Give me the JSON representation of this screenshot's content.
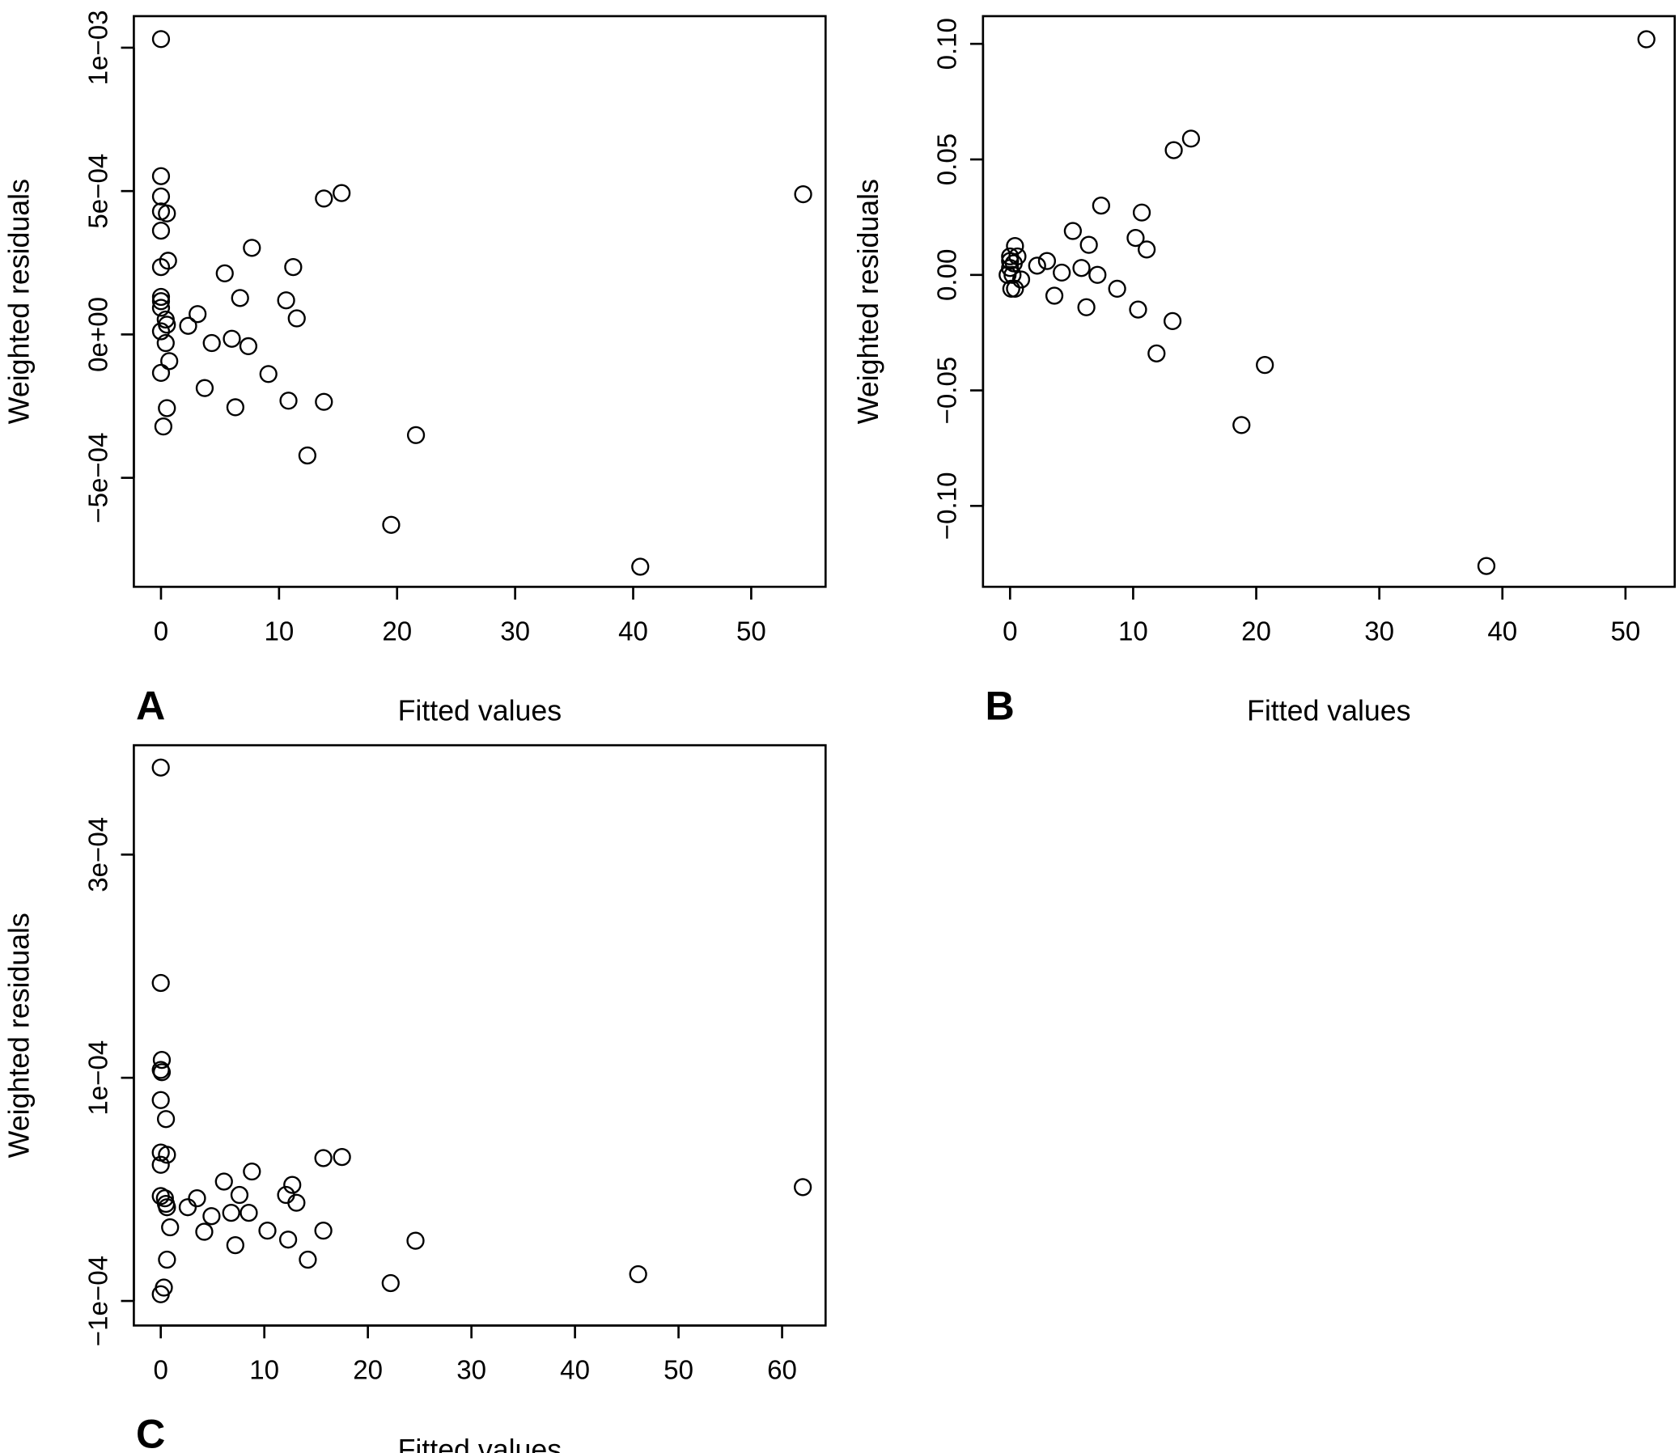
{
  "chart_data": [
    {
      "type": "scatter",
      "panel_label": "A",
      "xlabel": "Fitted values",
      "ylabel": "Weighted residuals",
      "xticks": [
        0,
        10,
        20,
        30,
        40,
        50
      ],
      "xtick_labels": [
        "0",
        "10",
        "20",
        "30",
        "40",
        "50"
      ],
      "yticks": [
        -0.0005,
        0,
        0.0005,
        0.001
      ],
      "ytick_labels": [
        "−5e−04",
        "0e+00",
        "5e−04",
        "1e−03"
      ],
      "xlim": [
        -2.3,
        56.3
      ],
      "ylim": [
        -0.00088,
        0.00111
      ],
      "marker": "open-circle",
      "points": [
        [
          0,
          0.00103
        ],
        [
          0,
          0.000552
        ],
        [
          0,
          0.000481
        ],
        [
          0,
          0.000429
        ],
        [
          0.5,
          0.000422
        ],
        [
          0,
          0.000362
        ],
        [
          0,
          0.000235
        ],
        [
          0.6,
          0.000257
        ],
        [
          0,
          0.000131
        ],
        [
          0,
          0.000116
        ],
        [
          0,
          9.3e-05
        ],
        [
          0.4,
          5.2e-05
        ],
        [
          0.5,
          3.4e-05
        ],
        [
          0,
          1.1e-05
        ],
        [
          0.4,
          -3e-05
        ],
        [
          0.7,
          -9.3e-05
        ],
        [
          0,
          -0.000134
        ],
        [
          0.5,
          -0.000257
        ],
        [
          0.2,
          -0.000321
        ],
        [
          3.1,
          7.1e-05
        ],
        [
          2.3,
          3e-05
        ],
        [
          4.3,
          -3e-05
        ],
        [
          3.7,
          -0.000187
        ],
        [
          5.4,
          0.000213
        ],
        [
          6.0,
          -1.5e-05
        ],
        [
          6.7,
          0.000127
        ],
        [
          7.4,
          -4.1e-05
        ],
        [
          7.7,
          0.000302
        ],
        [
          6.3,
          -0.000254
        ],
        [
          9.1,
          -0.000138
        ],
        [
          10.6,
          0.000119
        ],
        [
          11.2,
          0.000235
        ],
        [
          11.5,
          5.6e-05
        ],
        [
          10.8,
          -0.000231
        ],
        [
          13.8,
          0.000474
        ],
        [
          15.3,
          0.000493
        ],
        [
          13.8,
          -0.000235
        ],
        [
          12.4,
          -0.000422
        ],
        [
          21.6,
          -0.000351
        ],
        [
          19.5,
          -0.000664
        ],
        [
          40.6,
          -0.00081
        ],
        [
          54.4,
          0.000489
        ]
      ]
    },
    {
      "type": "scatter",
      "panel_label": "B",
      "xlabel": "Fitted values",
      "ylabel": "Weighted residuals",
      "xticks": [
        0,
        10,
        20,
        30,
        40,
        50
      ],
      "xtick_labels": [
        "0",
        "10",
        "20",
        "30",
        "40",
        "50"
      ],
      "yticks": [
        -0.1,
        -0.05,
        0,
        0.05,
        0.1
      ],
      "ytick_labels": [
        "−0.10",
        "−0.05",
        "0.00",
        "0.05",
        "0.10"
      ],
      "xlim": [
        -2.2,
        54
      ],
      "ylim": [
        -0.135,
        0.112
      ],
      "marker": "open-circle",
      "points": [
        [
          51.7,
          0.102
        ],
        [
          14.7,
          0.059
        ],
        [
          13.3,
          0.054
        ],
        [
          7.4,
          0.03
        ],
        [
          10.7,
          0.027
        ],
        [
          5.1,
          0.019
        ],
        [
          10.2,
          0.016
        ],
        [
          11.1,
          0.011
        ],
        [
          6.4,
          0.013
        ],
        [
          3.0,
          0.006
        ],
        [
          2.2,
          0.004
        ],
        [
          4.2,
          0.001
        ],
        [
          5.8,
          0.003
        ],
        [
          7.1,
          0
        ],
        [
          8.7,
          -0.006
        ],
        [
          3.6,
          -0.009
        ],
        [
          6.2,
          -0.014
        ],
        [
          10.4,
          -0.015
        ],
        [
          13.2,
          -0.02
        ],
        [
          11.9,
          -0.034
        ],
        [
          20.7,
          -0.039
        ],
        [
          18.8,
          -0.065
        ],
        [
          38.7,
          -0.126
        ],
        [
          0.4,
          0.0125
        ],
        [
          0,
          0.008
        ],
        [
          0,
          0.006
        ],
        [
          0,
          0.003
        ],
        [
          0.2,
          0
        ],
        [
          0.6,
          0.008
        ],
        [
          0.9,
          -0.002
        ],
        [
          0.1,
          -0.006
        ],
        [
          0.4,
          -0.006
        ],
        [
          -0.2,
          0
        ],
        [
          0.3,
          0.005
        ]
      ]
    },
    {
      "type": "scatter",
      "panel_label": "C",
      "xlabel": "Fitted values",
      "ylabel": "Weighted residuals",
      "xticks": [
        0,
        10,
        20,
        30,
        40,
        50,
        60
      ],
      "xtick_labels": [
        "0",
        "10",
        "20",
        "30",
        "40",
        "50",
        "60"
      ],
      "yticks": [
        -0.0001,
        0.0001,
        0.0003
      ],
      "ytick_labels": [
        "−1e−04",
        "1e−04",
        "3e−04"
      ],
      "xlim": [
        -2.6,
        64.2
      ],
      "ylim": [
        -0.000122,
        0.000398
      ],
      "marker": "open-circle",
      "points": [
        [
          0,
          0.000378
        ],
        [
          0,
          0.000185
        ],
        [
          0.1,
          0.000116
        ],
        [
          0,
          0.000107
        ],
        [
          0.1,
          0.000105
        ],
        [
          0,
          8e-05
        ],
        [
          0.5,
          6.3e-05
        ],
        [
          0,
          3.3e-05
        ],
        [
          0.6,
          3.1e-05
        ],
        [
          0,
          2.2e-05
        ],
        [
          0,
          -6e-06
        ],
        [
          0.4,
          -8e-06
        ],
        [
          0.5,
          -1.3e-05
        ],
        [
          0.6,
          -1.6e-05
        ],
        [
          0.9,
          -3.4e-05
        ],
        [
          0.6,
          -6.3e-05
        ],
        [
          0.3,
          -8.8e-05
        ],
        [
          0,
          -9.4e-05
        ],
        [
          2.6,
          -1.6e-05
        ],
        [
          3.5,
          -8e-06
        ],
        [
          4.9,
          -2.4e-05
        ],
        [
          4.2,
          -3.8e-05
        ],
        [
          6.1,
          7e-06
        ],
        [
          6.8,
          -2.1e-05
        ],
        [
          7.6,
          -5e-06
        ],
        [
          8.5,
          -2.1e-05
        ],
        [
          8.8,
          1.6e-05
        ],
        [
          7.2,
          -5e-05
        ],
        [
          10.3,
          -3.7e-05
        ],
        [
          12.1,
          -5e-06
        ],
        [
          12.7,
          4e-06
        ],
        [
          13.1,
          -1.2e-05
        ],
        [
          12.3,
          -4.5e-05
        ],
        [
          15.7,
          2.8e-05
        ],
        [
          17.5,
          2.9e-05
        ],
        [
          15.7,
          -3.7e-05
        ],
        [
          14.2,
          -6.3e-05
        ],
        [
          24.6,
          -4.6e-05
        ],
        [
          22.2,
          -8.4e-05
        ],
        [
          46.1,
          -7.6e-05
        ],
        [
          62.0,
          2e-06
        ]
      ]
    }
  ]
}
